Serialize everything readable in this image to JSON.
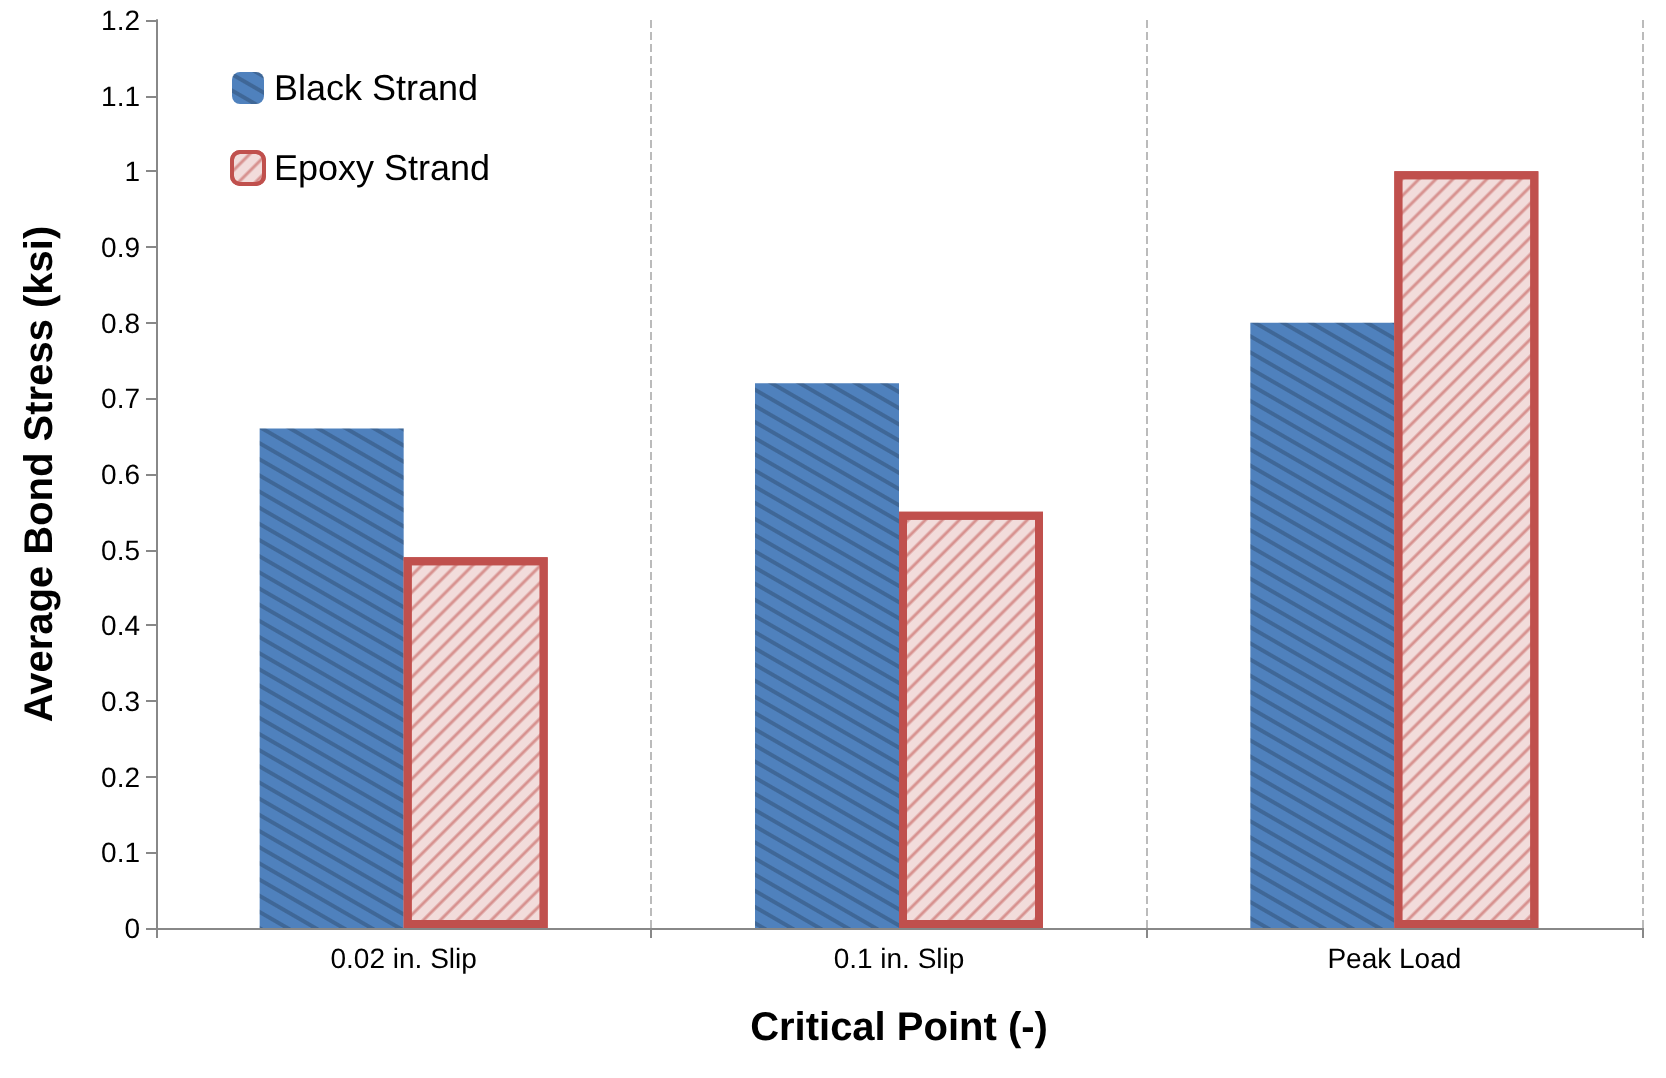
{
  "chart_data": {
    "type": "bar",
    "xlabel": "Critical Point (-)",
    "ylabel": "Average Bond Stress (ksi)",
    "categories": [
      "0.02 in. Slip",
      "0.1 in. Slip",
      "Peak Load"
    ],
    "series": [
      {
        "name": "Black Strand",
        "color": "#4f81bd",
        "values": [
          0.66,
          0.72,
          0.8
        ]
      },
      {
        "name": "Epoxy Strand",
        "color": "#c0504d",
        "values": [
          0.49,
          0.55,
          1.0
        ]
      }
    ],
    "ylim": [
      0,
      1.2
    ],
    "yticks": [
      0,
      0.1,
      0.2,
      0.3,
      0.4,
      0.5,
      0.6,
      0.7,
      0.8,
      0.9,
      1,
      1.1,
      1.2
    ],
    "grid": "x",
    "legend": "top left"
  }
}
